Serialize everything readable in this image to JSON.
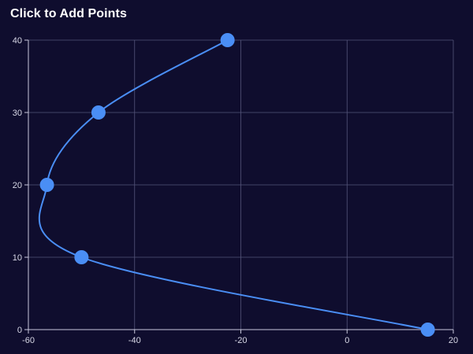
{
  "header": {
    "title": "Click to Add Points"
  },
  "colors": {
    "background": "#0f0d2e",
    "grid": "#55557a",
    "axis": "#c8c8dc",
    "series": "#4a8ef5",
    "point": "#4a8ef5",
    "text": "#ffffff",
    "tick_text": "#d7d7e6"
  },
  "chart_data": {
    "type": "scatter",
    "title": "Click to Add Points",
    "xlabel": "",
    "ylabel": "",
    "xlim": [
      -60,
      20
    ],
    "ylim": [
      0,
      40
    ],
    "x_ticks": [
      -60,
      -40,
      -20,
      0,
      20
    ],
    "y_ticks": [
      0,
      10,
      20,
      30,
      40
    ],
    "x_tick_labels": [
      "-60",
      "-40",
      "-20",
      "0",
      "20"
    ],
    "y_tick_labels": [
      "0",
      "10",
      "20",
      "30",
      "40"
    ],
    "grid": true,
    "series": [
      {
        "points": [
          {
            "x": -22.5,
            "y": 40
          },
          {
            "x": -46.8,
            "y": 30
          },
          {
            "x": -56.5,
            "y": 20
          },
          {
            "x": -50.0,
            "y": 10
          },
          {
            "x": 15.2,
            "y": 0
          }
        ],
        "line": "smooth"
      }
    ]
  }
}
